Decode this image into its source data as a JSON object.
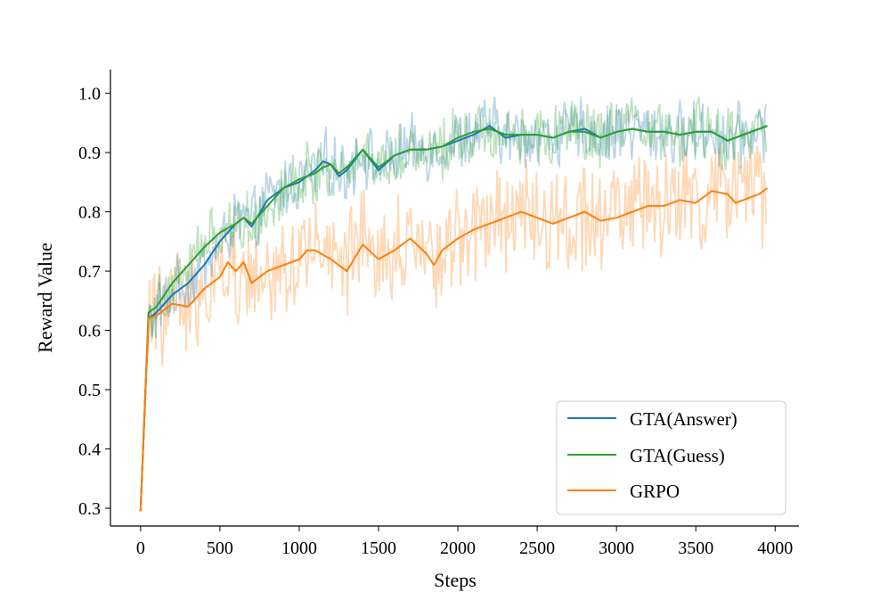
{
  "chart_data": {
    "type": "line",
    "title": "",
    "xlabel": "Steps",
    "ylabel": "Reward Value",
    "xlim": [
      -190,
      4150
    ],
    "ylim": [
      0.27,
      1.04
    ],
    "xticks": [
      0,
      500,
      1000,
      1500,
      2000,
      2500,
      3000,
      3500,
      4000
    ],
    "yticks": [
      0.3,
      0.4,
      0.5,
      0.6,
      0.7,
      0.8,
      0.9,
      1.0
    ],
    "xtick_labels": [
      "0",
      "500",
      "1000",
      "1500",
      "2000",
      "2500",
      "3000",
      "3500",
      "4000"
    ],
    "ytick_labels": [
      "0.3",
      "0.4",
      "0.5",
      "0.6",
      "0.7",
      "0.8",
      "0.9",
      "1.0"
    ],
    "grid": false,
    "legend_position": "lower-right",
    "raw_alpha": 0.3,
    "series": [
      {
        "name": "GTA(Answer)",
        "color": "#1f77b4",
        "noise": 0.045,
        "x": [
          0,
          50,
          100,
          200,
          300,
          400,
          500,
          600,
          650,
          700,
          800,
          900,
          1000,
          1100,
          1150,
          1200,
          1250,
          1300,
          1400,
          1500,
          1600,
          1700,
          1800,
          1900,
          2000,
          2100,
          2200,
          2300,
          2400,
          2500,
          2600,
          2700,
          2800,
          2900,
          3000,
          3100,
          3200,
          3300,
          3400,
          3500,
          3600,
          3700,
          3800,
          3900,
          3950
        ],
        "values": [
          0.295,
          0.62,
          0.63,
          0.66,
          0.68,
          0.71,
          0.75,
          0.78,
          0.79,
          0.775,
          0.82,
          0.84,
          0.85,
          0.87,
          0.885,
          0.88,
          0.86,
          0.87,
          0.905,
          0.87,
          0.895,
          0.905,
          0.905,
          0.91,
          0.92,
          0.93,
          0.945,
          0.925,
          0.93,
          0.93,
          0.925,
          0.935,
          0.94,
          0.925,
          0.935,
          0.94,
          0.935,
          0.935,
          0.93,
          0.935,
          0.935,
          0.92,
          0.93,
          0.94,
          0.945
        ]
      },
      {
        "name": "GTA(Guess)",
        "color": "#2ca02c",
        "noise": 0.045,
        "x": [
          0,
          50,
          100,
          200,
          300,
          400,
          500,
          600,
          650,
          700,
          800,
          900,
          1000,
          1100,
          1150,
          1200,
          1250,
          1300,
          1400,
          1500,
          1600,
          1700,
          1800,
          1900,
          2000,
          2100,
          2200,
          2300,
          2400,
          2500,
          2600,
          2700,
          2800,
          2900,
          3000,
          3100,
          3200,
          3300,
          3400,
          3500,
          3600,
          3700,
          3800,
          3900,
          3950
        ],
        "values": [
          0.295,
          0.63,
          0.64,
          0.68,
          0.71,
          0.74,
          0.765,
          0.78,
          0.79,
          0.78,
          0.81,
          0.84,
          0.855,
          0.865,
          0.875,
          0.88,
          0.865,
          0.875,
          0.905,
          0.875,
          0.895,
          0.905,
          0.905,
          0.91,
          0.925,
          0.935,
          0.94,
          0.93,
          0.93,
          0.93,
          0.925,
          0.935,
          0.935,
          0.925,
          0.935,
          0.94,
          0.935,
          0.935,
          0.93,
          0.935,
          0.935,
          0.92,
          0.93,
          0.94,
          0.945
        ]
      },
      {
        "name": "GRPO",
        "color": "#ff7f0e",
        "noise": 0.075,
        "x": [
          0,
          50,
          100,
          200,
          300,
          400,
          500,
          550,
          600,
          650,
          700,
          800,
          900,
          1000,
          1050,
          1100,
          1200,
          1300,
          1400,
          1500,
          1600,
          1700,
          1800,
          1850,
          1900,
          2000,
          2100,
          2200,
          2300,
          2400,
          2500,
          2600,
          2700,
          2800,
          2900,
          3000,
          3100,
          3200,
          3300,
          3400,
          3500,
          3600,
          3700,
          3750,
          3800,
          3900,
          3950
        ],
        "values": [
          0.295,
          0.62,
          0.625,
          0.645,
          0.64,
          0.67,
          0.69,
          0.715,
          0.7,
          0.715,
          0.68,
          0.7,
          0.71,
          0.72,
          0.735,
          0.735,
          0.72,
          0.7,
          0.745,
          0.72,
          0.735,
          0.755,
          0.73,
          0.71,
          0.735,
          0.755,
          0.77,
          0.78,
          0.79,
          0.8,
          0.79,
          0.78,
          0.79,
          0.8,
          0.785,
          0.79,
          0.8,
          0.81,
          0.81,
          0.82,
          0.815,
          0.835,
          0.83,
          0.815,
          0.82,
          0.83,
          0.84
        ]
      }
    ]
  }
}
